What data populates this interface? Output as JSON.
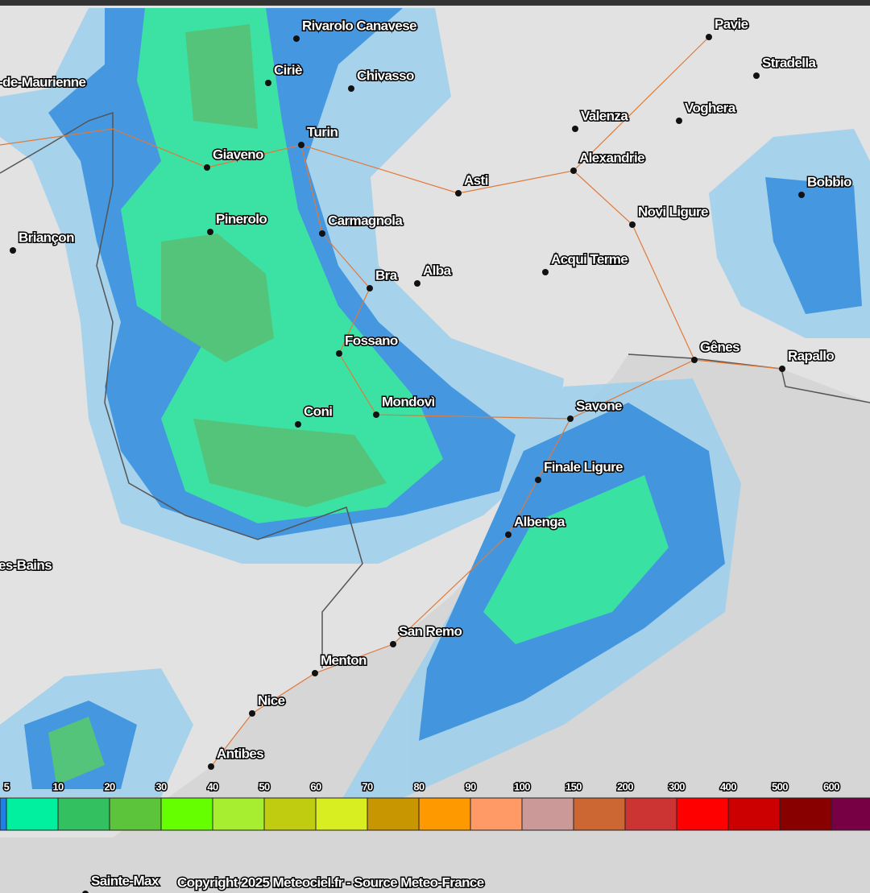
{
  "cities": [
    {
      "name": "Rivarolo Canavese"
    },
    {
      "name": "Ciriè"
    },
    {
      "name": "Chivasso"
    },
    {
      "name": "Turin"
    },
    {
      "name": "Giaveno"
    },
    {
      "name": "Pinerolo"
    },
    {
      "name": "Carmagnola"
    },
    {
      "name": "Briançon"
    },
    {
      "name": "-de-Maurienne"
    },
    {
      "name": "Bra"
    },
    {
      "name": "Alba"
    },
    {
      "name": "Fossano"
    },
    {
      "name": "Coni"
    },
    {
      "name": "Mondovì"
    },
    {
      "name": "Asti"
    },
    {
      "name": "Alexandrie"
    },
    {
      "name": "Valenza"
    },
    {
      "name": "Voghera"
    },
    {
      "name": "Stradella"
    },
    {
      "name": "Pavie"
    },
    {
      "name": "Novi Ligure"
    },
    {
      "name": "Acqui Terme"
    },
    {
      "name": "Bobbio"
    },
    {
      "name": "Gênes"
    },
    {
      "name": "Rapallo"
    },
    {
      "name": "Savone"
    },
    {
      "name": "Finale Ligure"
    },
    {
      "name": "Albenga"
    },
    {
      "name": "San Remo"
    },
    {
      "name": "Menton"
    },
    {
      "name": "Nice"
    },
    {
      "name": "Antibes"
    },
    {
      "name": "es-Bains"
    },
    {
      "name": "Sainte-Max"
    }
  ],
  "legend": {
    "labels": [
      5,
      10,
      20,
      30,
      40,
      50,
      60,
      70,
      80,
      90,
      100,
      150,
      200,
      300,
      400,
      500,
      600
    ],
    "colors": [
      "#1e7fe6",
      "#00f0a0",
      "#33c060",
      "#5cc43a",
      "#66ff00",
      "#a8ee30",
      "#c0cc10",
      "#d8ee20",
      "#c89600",
      "#ff9900",
      "#ff9966",
      "#cc9999",
      "#cc6633",
      "#cc3333",
      "#ff0000",
      "#cc0000",
      "#880000",
      "#770044"
    ]
  },
  "copyright": "Copyright 2025 Meteociel.fr - Source Meteo-France"
}
